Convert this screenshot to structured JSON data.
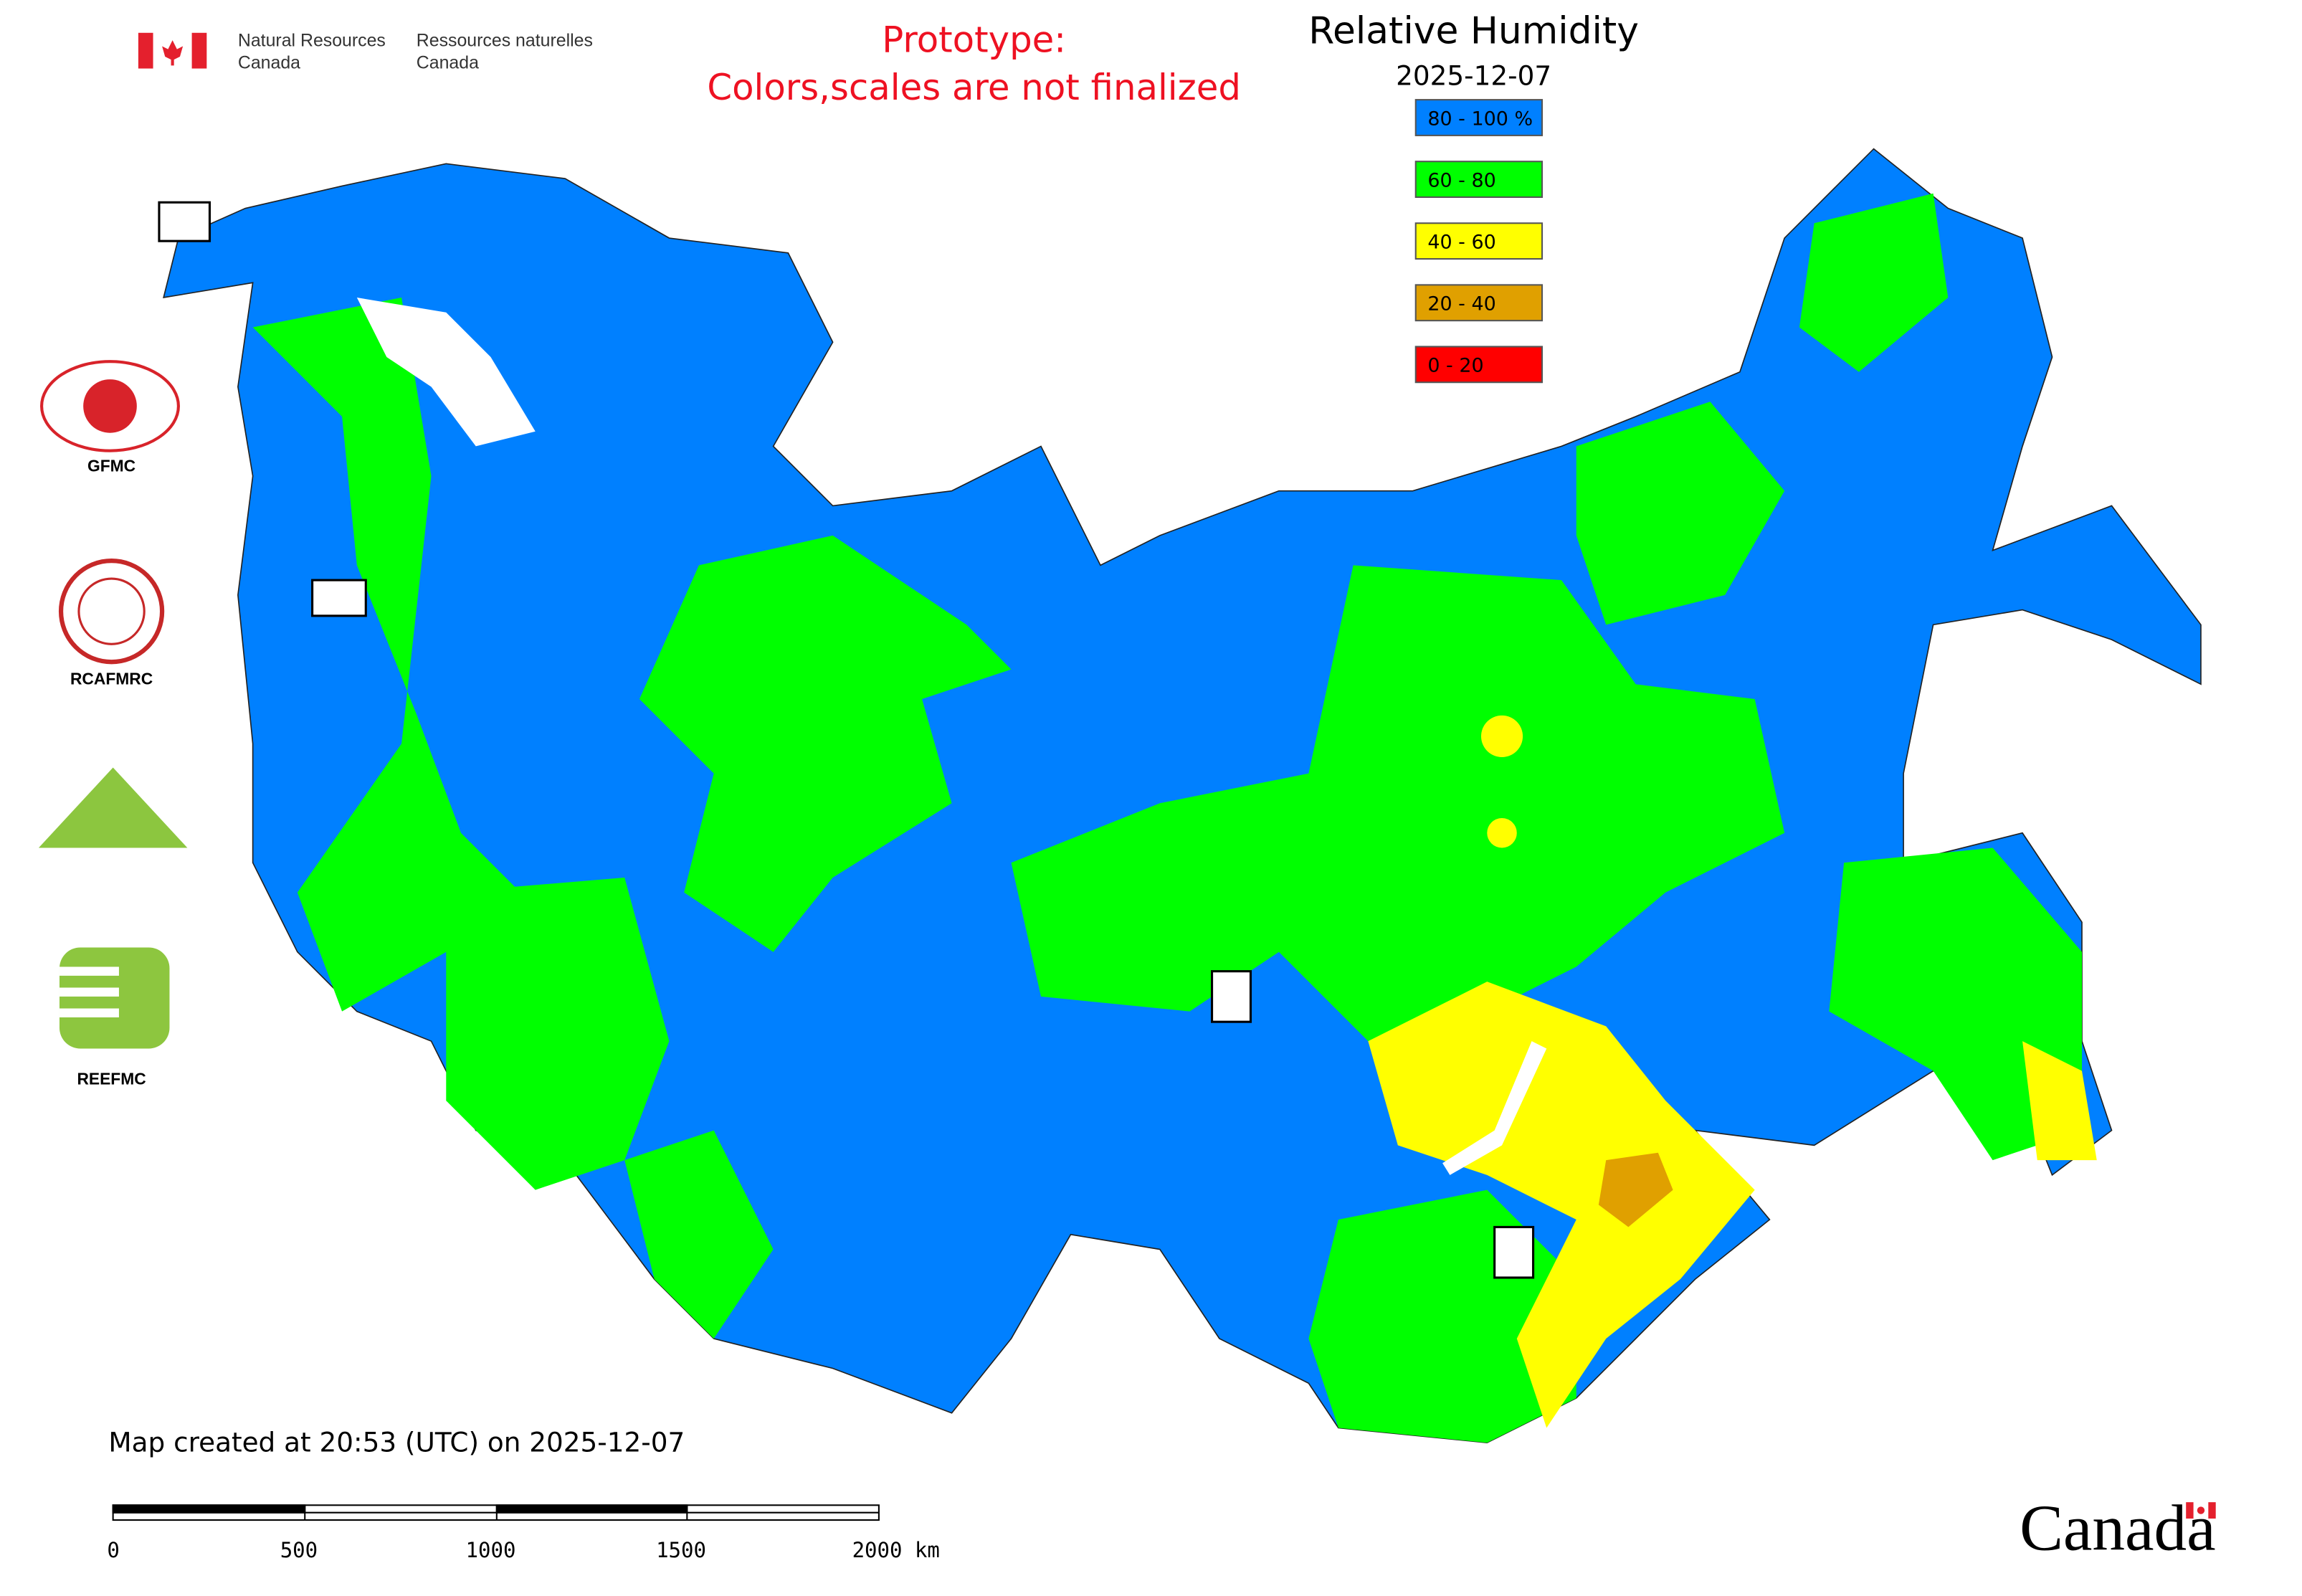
{
  "header": {
    "org_en_line1": "Natural Resources",
    "org_en_line2": "Canada",
    "org_fr_line1": "Ressources naturelles",
    "org_fr_line2": "Canada",
    "notice_line1": "Prototype:",
    "notice_line2": "Colors,scales are not finalized"
  },
  "map": {
    "title": "Relative Humidity",
    "date": "2025-12-07"
  },
  "legend": {
    "items": [
      {
        "label": "80 - 100 %",
        "color": "#0080ff"
      },
      {
        "label": "60 - 80",
        "color": "#00ff00"
      },
      {
        "label": "40 - 60",
        "color": "#ffff00"
      },
      {
        "label": "20 - 40",
        "color": "#e0a000"
      },
      {
        "label": "0 - 20",
        "color": "#ff0000"
      }
    ]
  },
  "logos": [
    "GFMC",
    "RCAFMRC",
    "REEFMC"
  ],
  "footer": {
    "created": "Map created at 20:53 (UTC) on 2025-12-07",
    "scale_labels": [
      "0",
      "500",
      "1000",
      "1500",
      "2000 km"
    ],
    "wordmark": "Canada"
  }
}
